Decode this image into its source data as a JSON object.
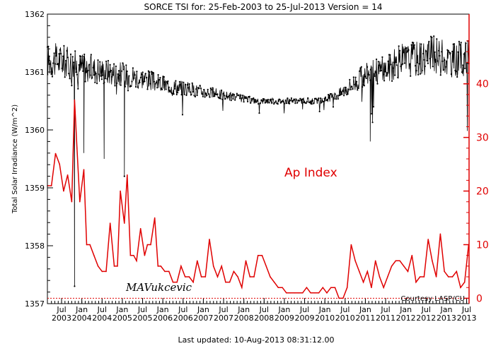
{
  "chart_data": {
    "type": "line",
    "title": "SORCE TSI for: 25-Feb-2003 to 25-Jul-2013 Version = 14",
    "ylabel_left": "Total Solar Irradiance (W/m^2)",
    "ylim_left": [
      1357,
      1362
    ],
    "yticks_left": [
      "1357",
      "1358",
      "1359",
      "1360",
      "1361",
      "1362"
    ],
    "ylim_right": [
      -1,
      53
    ],
    "yticks_right": [
      "0",
      "10",
      "20",
      "30",
      "40"
    ],
    "x_month_labels": [
      "Jul",
      "Jan",
      "Jul",
      "Jan",
      "Jul",
      "Jan",
      "Jul",
      "Jan",
      "Jul",
      "Jan",
      "Jul",
      "Jan",
      "Jul",
      "Jan",
      "Jul",
      "Jan",
      "Jul",
      "Jan",
      "Jul",
      "Jan",
      "Jul"
    ],
    "x_year_labels": [
      "2003",
      "2004",
      "2004",
      "2005",
      "2005",
      "2006",
      "2006",
      "2007",
      "2007",
      "2008",
      "2008",
      "2009",
      "2009",
      "2010",
      "2010",
      "2011",
      "2011",
      "2012",
      "2012",
      "2013",
      "2013"
    ],
    "annotations": {
      "ap_index": "Ap Index",
      "author": "MAVukcevic",
      "courtesy": "Courtesy LASP/CU"
    },
    "footer": "Last updated: 10-Aug-2013 08:31:12.00",
    "colors": {
      "tsi": "#000000",
      "ap": "#e00000",
      "background": "#ffffff"
    },
    "series_ap": {
      "x": [
        2003.15,
        2003.25,
        2003.35,
        2003.45,
        2003.55,
        2003.65,
        2003.75,
        2003.82,
        2003.88,
        2003.95,
        2004.05,
        2004.12,
        2004.2,
        2004.3,
        2004.4,
        2004.5,
        2004.6,
        2004.7,
        2004.8,
        2004.88,
        2004.95,
        2005.05,
        2005.12,
        2005.2,
        2005.28,
        2005.35,
        2005.45,
        2005.55,
        2005.62,
        2005.7,
        2005.8,
        2005.88,
        2005.95,
        2006.05,
        2006.15,
        2006.25,
        2006.35,
        2006.45,
        2006.55,
        2006.65,
        2006.75,
        2006.85,
        2006.95,
        2007.05,
        2007.15,
        2007.25,
        2007.35,
        2007.45,
        2007.55,
        2007.65,
        2007.75,
        2007.85,
        2007.95,
        2008.05,
        2008.15,
        2008.25,
        2008.35,
        2008.45,
        2008.55,
        2008.65,
        2008.75,
        2008.85,
        2008.95,
        2009.05,
        2009.15,
        2009.25,
        2009.35,
        2009.45,
        2009.55,
        2009.65,
        2009.75,
        2009.85,
        2009.95,
        2010.05,
        2010.15,
        2010.25,
        2010.35,
        2010.45,
        2010.55,
        2010.65,
        2010.75,
        2010.85,
        2010.95,
        2011.05,
        2011.15,
        2011.25,
        2011.35,
        2011.45,
        2011.55,
        2011.65,
        2011.75,
        2011.85,
        2011.95,
        2012.05,
        2012.15,
        2012.25,
        2012.35,
        2012.45,
        2012.55,
        2012.65,
        2012.75,
        2012.85,
        2012.95,
        2013.05,
        2013.15,
        2013.25,
        2013.35,
        2013.45,
        2013.55
      ],
      "values": [
        21,
        21,
        27,
        25,
        20,
        23,
        18,
        37,
        28,
        18,
        24,
        10,
        10,
        8,
        6,
        5,
        5,
        14,
        6,
        6,
        20,
        14,
        23,
        8,
        8,
        7,
        13,
        8,
        10,
        10,
        15,
        6,
        6,
        5,
        5,
        3,
        3,
        6,
        4,
        4,
        3,
        7,
        4,
        4,
        11,
        6,
        4,
        6,
        3,
        3,
        5,
        4,
        2,
        7,
        4,
        4,
        8,
        8,
        6,
        4,
        3,
        2,
        2,
        1,
        1,
        1,
        1,
        1,
        2,
        1,
        1,
        1,
        2,
        1,
        2,
        2,
        0,
        0,
        2,
        10,
        7,
        5,
        3,
        5,
        2,
        7,
        4,
        2,
        4,
        6,
        7,
        7,
        6,
        5,
        8,
        3,
        4,
        4,
        11,
        7,
        4,
        12,
        5,
        4,
        4,
        5,
        2,
        3,
        10
      ]
    },
    "series_tsi_trend": {
      "x": [
        2003.15,
        2003.5,
        2003.9,
        2004.3,
        2004.7,
        2005.1,
        2005.5,
        2005.9,
        2006.3,
        2006.7,
        2007.1,
        2007.5,
        2007.9,
        2008.3,
        2008.7,
        2009.1,
        2009.5,
        2009.9,
        2010.3,
        2010.7,
        2011.1,
        2011.5,
        2011.9,
        2012.3,
        2012.7,
        2013.1,
        2013.55
      ],
      "values": [
        1361.2,
        1361.2,
        1361.1,
        1361.05,
        1361.0,
        1360.95,
        1360.9,
        1360.8,
        1360.75,
        1360.7,
        1360.65,
        1360.6,
        1360.55,
        1360.5,
        1360.5,
        1360.5,
        1360.5,
        1360.5,
        1360.6,
        1360.8,
        1361.0,
        1361.05,
        1361.2,
        1361.25,
        1361.3,
        1361.2,
        1361.25
      ]
    }
  }
}
